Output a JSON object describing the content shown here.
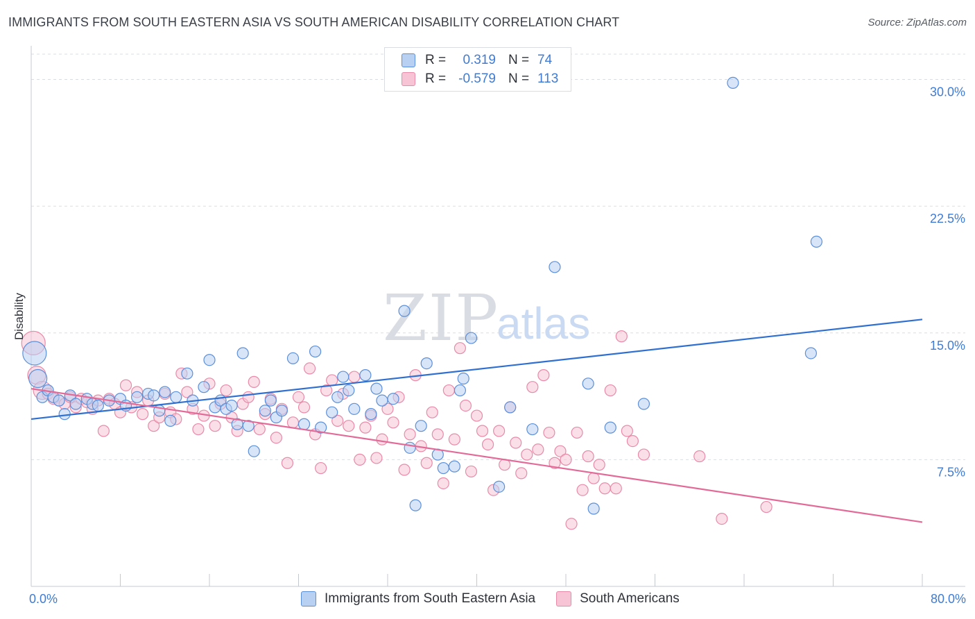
{
  "title": "IMMIGRANTS FROM SOUTH EASTERN ASIA VS SOUTH AMERICAN DISABILITY CORRELATION CHART",
  "source": "Source: ZipAtlas.com",
  "watermark": {
    "zip": "ZIP",
    "atlas": "atlas"
  },
  "legend": {
    "r_label": "R =",
    "n_label": "N =",
    "rows": [
      {
        "r": "0.319",
        "n": "74"
      },
      {
        "r": "-0.579",
        "n": "113"
      }
    ]
  },
  "colors": {
    "blue_fill": "#b8d0f2",
    "blue_stroke": "#5b8fd9",
    "blue_line": "#2f6fd0",
    "pink_fill": "#f7c4d5",
    "pink_stroke": "#e88aa8",
    "pink_line": "#e36a97",
    "grid": "#d9dde3",
    "tick_text": "#3f7bd4"
  },
  "chart_data": {
    "type": "scatter",
    "title": "IMMIGRANTS FROM SOUTH EASTERN ASIA VS SOUTH AMERICAN DISABILITY CORRELATION CHART",
    "xlabel": "",
    "ylabel": "Disability",
    "xlim": [
      0,
      80
    ],
    "ylim": [
      0,
      31.5
    ],
    "x_tick_labels": [
      "0.0%",
      "80.0%"
    ],
    "y_ticks": [
      7.5,
      15.0,
      22.5,
      30.0
    ],
    "y_tick_labels": [
      "7.5%",
      "15.0%",
      "22.5%",
      "30.0%"
    ],
    "legend_position": "top-center",
    "grid": "horizontal dashed",
    "series": [
      {
        "name": "Immigrants from South Eastern Asia",
        "r": 0.319,
        "n": 74,
        "trend": {
          "x0": 0,
          "y0": 9.9,
          "x1": 80,
          "y1": 15.8
        },
        "points": [
          [
            0.3,
            13.8,
            3
          ],
          [
            0.6,
            12.3,
            2
          ],
          [
            1.0,
            11.2,
            1
          ],
          [
            1.5,
            11.6,
            1
          ],
          [
            2.0,
            11.2,
            1
          ],
          [
            2.5,
            11.0,
            1
          ],
          [
            3.0,
            10.2,
            1
          ],
          [
            3.5,
            11.3,
            1
          ],
          [
            4.0,
            10.8,
            1
          ],
          [
            5.0,
            11.1,
            1
          ],
          [
            5.5,
            10.8,
            1
          ],
          [
            6.0,
            10.7,
            1
          ],
          [
            7.0,
            11.0,
            1
          ],
          [
            8.0,
            11.1,
            1
          ],
          [
            8.5,
            10.7,
            1
          ],
          [
            9.5,
            11.2,
            1
          ],
          [
            10.5,
            11.4,
            1
          ],
          [
            11.0,
            11.3,
            1
          ],
          [
            11.5,
            10.4,
            1
          ],
          [
            12.0,
            11.5,
            1
          ],
          [
            12.5,
            9.8,
            1
          ],
          [
            13.0,
            11.2,
            1
          ],
          [
            14.0,
            12.6,
            1
          ],
          [
            14.5,
            11.0,
            1
          ],
          [
            15.5,
            11.8,
            1
          ],
          [
            16.0,
            13.4,
            1
          ],
          [
            16.5,
            10.6,
            1
          ],
          [
            17.0,
            11.0,
            1
          ],
          [
            17.5,
            10.5,
            1
          ],
          [
            18.0,
            10.7,
            1
          ],
          [
            18.5,
            9.6,
            1
          ],
          [
            19.0,
            13.8,
            1
          ],
          [
            19.5,
            9.5,
            1
          ],
          [
            20.0,
            8.0,
            1
          ],
          [
            21.0,
            10.4,
            1
          ],
          [
            21.5,
            11.0,
            1
          ],
          [
            22.0,
            10.0,
            1
          ],
          [
            22.5,
            10.4,
            1
          ],
          [
            23.5,
            13.5,
            1
          ],
          [
            24.5,
            9.6,
            1
          ],
          [
            25.5,
            13.9,
            1
          ],
          [
            26.0,
            9.4,
            1
          ],
          [
            27.0,
            10.3,
            1
          ],
          [
            27.5,
            11.2,
            1
          ],
          [
            28.0,
            12.4,
            1
          ],
          [
            28.5,
            11.6,
            1
          ],
          [
            29.0,
            10.5,
            1
          ],
          [
            30.0,
            12.5,
            1
          ],
          [
            30.5,
            10.2,
            1
          ],
          [
            31.0,
            11.7,
            1
          ],
          [
            31.5,
            11.0,
            1
          ],
          [
            32.5,
            11.1,
            1
          ],
          [
            33.5,
            16.3,
            1
          ],
          [
            34.0,
            8.2,
            1
          ],
          [
            34.5,
            4.8,
            1
          ],
          [
            35.0,
            9.5,
            1
          ],
          [
            35.5,
            13.2,
            1
          ],
          [
            36.5,
            7.8,
            1
          ],
          [
            37.0,
            7.0,
            1
          ],
          [
            38.0,
            7.1,
            1
          ],
          [
            38.5,
            11.6,
            1
          ],
          [
            38.8,
            12.3,
            1
          ],
          [
            39.5,
            14.7,
            1
          ],
          [
            42.0,
            5.9,
            1
          ],
          [
            43.0,
            10.6,
            1
          ],
          [
            45.0,
            9.3,
            1
          ],
          [
            47.0,
            18.9,
            1
          ],
          [
            50.0,
            12.0,
            1
          ],
          [
            52.0,
            9.4,
            1
          ],
          [
            55.0,
            10.8,
            1
          ],
          [
            63.0,
            29.8,
            1
          ],
          [
            70.0,
            13.8,
            1
          ],
          [
            70.5,
            20.4,
            1
          ],
          [
            50.5,
            4.6,
            1
          ]
        ]
      },
      {
        "name": "South Americans",
        "r": -0.579,
        "n": 113,
        "trend": {
          "x0": 0,
          "y0": 11.7,
          "x1": 80,
          "y1": 3.8
        },
        "points": [
          [
            0.2,
            14.4,
            3
          ],
          [
            0.5,
            12.5,
            2
          ],
          [
            1.0,
            11.6,
            2
          ],
          [
            1.5,
            11.4,
            1
          ],
          [
            2.0,
            11.1,
            1
          ],
          [
            2.5,
            11.0,
            1
          ],
          [
            3.0,
            10.8,
            1
          ],
          [
            3.5,
            11.2,
            1
          ],
          [
            4.0,
            10.6,
            1
          ],
          [
            4.5,
            11.1,
            1
          ],
          [
            5.0,
            10.9,
            1
          ],
          [
            5.5,
            10.5,
            1
          ],
          [
            6.0,
            11.0,
            1
          ],
          [
            6.5,
            9.2,
            1
          ],
          [
            7.0,
            11.1,
            1
          ],
          [
            7.5,
            10.8,
            1
          ],
          [
            8.0,
            10.3,
            1
          ],
          [
            8.5,
            11.9,
            1
          ],
          [
            9.0,
            10.6,
            1
          ],
          [
            9.5,
            11.5,
            1
          ],
          [
            10.0,
            10.2,
            1
          ],
          [
            10.5,
            11.0,
            1
          ],
          [
            11.0,
            9.5,
            1
          ],
          [
            11.5,
            10.0,
            1
          ],
          [
            12.0,
            11.4,
            1
          ],
          [
            12.5,
            10.3,
            1
          ],
          [
            13.0,
            9.9,
            1
          ],
          [
            13.5,
            12.6,
            1
          ],
          [
            14.0,
            11.5,
            1
          ],
          [
            14.5,
            10.5,
            1
          ],
          [
            15.0,
            9.3,
            1
          ],
          [
            15.5,
            10.1,
            1
          ],
          [
            16.0,
            12.0,
            1
          ],
          [
            16.5,
            9.5,
            1
          ],
          [
            17.0,
            10.8,
            1
          ],
          [
            17.5,
            11.6,
            1
          ],
          [
            18.0,
            10.0,
            1
          ],
          [
            18.5,
            9.2,
            1
          ],
          [
            19.0,
            10.8,
            1
          ],
          [
            19.5,
            11.2,
            1
          ],
          [
            20.0,
            12.1,
            1
          ],
          [
            20.5,
            9.3,
            1
          ],
          [
            21.0,
            10.2,
            1
          ],
          [
            21.5,
            11.1,
            1
          ],
          [
            22.0,
            8.8,
            1
          ],
          [
            22.5,
            10.5,
            1
          ],
          [
            23.0,
            7.3,
            1
          ],
          [
            23.5,
            9.7,
            1
          ],
          [
            24.0,
            11.2,
            1
          ],
          [
            24.5,
            10.6,
            1
          ],
          [
            25.0,
            12.9,
            1
          ],
          [
            25.5,
            9.0,
            1
          ],
          [
            26.0,
            7.0,
            1
          ],
          [
            26.5,
            11.6,
            1
          ],
          [
            27.0,
            12.2,
            1
          ],
          [
            27.5,
            9.8,
            1
          ],
          [
            28.0,
            11.4,
            1
          ],
          [
            28.5,
            9.5,
            1
          ],
          [
            29.0,
            12.4,
            1
          ],
          [
            29.5,
            7.5,
            1
          ],
          [
            30.0,
            9.4,
            1
          ],
          [
            30.5,
            10.1,
            1
          ],
          [
            31.0,
            7.6,
            1
          ],
          [
            31.5,
            8.7,
            1
          ],
          [
            32.0,
            10.5,
            1
          ],
          [
            32.5,
            9.7,
            1
          ],
          [
            33.0,
            11.2,
            1
          ],
          [
            33.5,
            6.9,
            1
          ],
          [
            34.0,
            9.0,
            1
          ],
          [
            34.5,
            12.5,
            1
          ],
          [
            35.0,
            8.3,
            1
          ],
          [
            35.5,
            7.3,
            1
          ],
          [
            36.0,
            10.3,
            1
          ],
          [
            36.5,
            9.0,
            1
          ],
          [
            37.0,
            6.1,
            1
          ],
          [
            37.5,
            11.6,
            1
          ],
          [
            38.0,
            8.7,
            1
          ],
          [
            38.5,
            14.1,
            1
          ],
          [
            39.0,
            10.7,
            1
          ],
          [
            39.5,
            6.8,
            1
          ],
          [
            40.0,
            10.1,
            1
          ],
          [
            40.5,
            9.2,
            1
          ],
          [
            41.0,
            8.4,
            1
          ],
          [
            41.5,
            5.7,
            1
          ],
          [
            42.0,
            9.2,
            1
          ],
          [
            42.5,
            7.2,
            1
          ],
          [
            43.0,
            10.6,
            1
          ],
          [
            43.5,
            8.5,
            1
          ],
          [
            44.0,
            6.7,
            1
          ],
          [
            44.5,
            7.8,
            1
          ],
          [
            45.0,
            11.8,
            1
          ],
          [
            45.5,
            8.1,
            1
          ],
          [
            46.0,
            12.5,
            1
          ],
          [
            46.5,
            9.1,
            1
          ],
          [
            47.0,
            7.3,
            1
          ],
          [
            47.5,
            8.0,
            1
          ],
          [
            48.0,
            7.5,
            1
          ],
          [
            48.5,
            3.7,
            1
          ],
          [
            49.0,
            9.1,
            1
          ],
          [
            49.5,
            5.7,
            1
          ],
          [
            50.0,
            7.7,
            1
          ],
          [
            50.5,
            6.4,
            1
          ],
          [
            51.0,
            7.2,
            1
          ],
          [
            51.5,
            5.8,
            1
          ],
          [
            52.0,
            11.6,
            1
          ],
          [
            52.5,
            5.8,
            1
          ],
          [
            53.0,
            14.8,
            1
          ],
          [
            53.5,
            9.2,
            1
          ],
          [
            54.0,
            8.6,
            1
          ],
          [
            55.0,
            7.8,
            1
          ],
          [
            60.0,
            7.7,
            1
          ],
          [
            62.0,
            4.0,
            1
          ],
          [
            66.0,
            4.7,
            1
          ]
        ]
      }
    ]
  },
  "bottom_legend": [
    "Immigrants from South Eastern Asia",
    "South Americans"
  ]
}
